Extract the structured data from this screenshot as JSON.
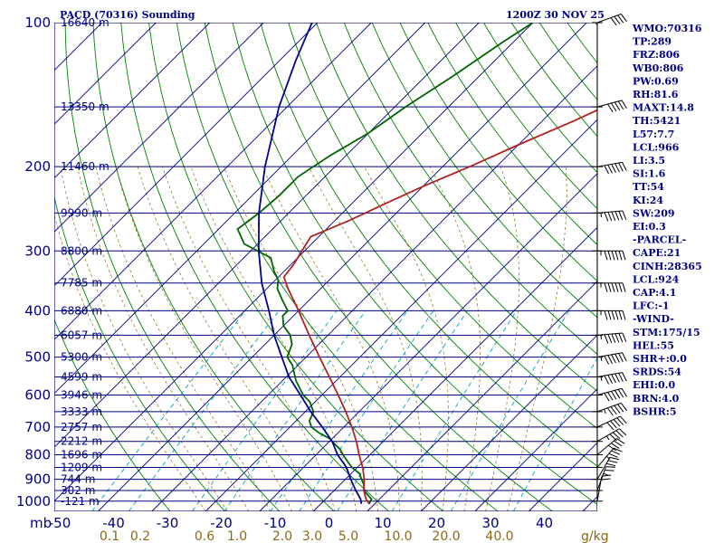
{
  "header": {
    "station": "PACD (70316) Sounding",
    "time": "1200Z 30 NOV 25"
  },
  "chart_data": {
    "type": "skew-t",
    "title": "PACD (70316) Sounding",
    "valid_time": "1200Z 30 NOV 25",
    "pressure_axis_label": "mb",
    "pressure_levels": [
      100,
      200,
      300,
      400,
      500,
      600,
      700,
      800,
      900,
      1000
    ],
    "temperature_ticks": [
      -50,
      -40,
      -30,
      -20,
      -10,
      0,
      10,
      20,
      30,
      40
    ],
    "mixing_ratio_ticks": [
      "0.1",
      "0.2",
      "0.6",
      "1.0",
      "2.0",
      "3.0",
      "5.0",
      "10.0",
      "20.0",
      "40.0"
    ],
    "mixing_ratio_unit": "g/kg",
    "height_labels": [
      {
        "p": 100,
        "h": "16640 m"
      },
      {
        "p": 150,
        "h": "13350 m"
      },
      {
        "p": 200,
        "h": "11460 m"
      },
      {
        "p": 250,
        "h": "9990 m"
      },
      {
        "p": 300,
        "h": "8800 m"
      },
      {
        "p": 350,
        "h": "7785 m"
      },
      {
        "p": 400,
        "h": "6880 m"
      },
      {
        "p": 450,
        "h": "6057 m"
      },
      {
        "p": 500,
        "h": "5300 m"
      },
      {
        "p": 550,
        "h": "4599 m"
      },
      {
        "p": 600,
        "h": "3946 m"
      },
      {
        "p": 650,
        "h": "3333 m"
      },
      {
        "p": 700,
        "h": "2757 m"
      },
      {
        "p": 750,
        "h": "2212 m"
      },
      {
        "p": 800,
        "h": "1696 m"
      },
      {
        "p": 850,
        "h": "1209 m"
      },
      {
        "p": 900,
        "h": "744 m"
      },
      {
        "p": 950,
        "h": "302 m"
      },
      {
        "p": 1000,
        "h": "-121 m"
      }
    ],
    "series": [
      {
        "name": "temperature",
        "color": "#006400",
        "points": [
          [
            1013,
            9
          ],
          [
            990,
            8.5
          ],
          [
            950,
            5.5
          ],
          [
            925,
            4.5
          ],
          [
            900,
            3
          ],
          [
            875,
            1.5
          ],
          [
            850,
            -1
          ],
          [
            825,
            -3
          ],
          [
            800,
            -5
          ],
          [
            780,
            -6.5
          ],
          [
            760,
            -8.5
          ],
          [
            740,
            -10.5
          ],
          [
            720,
            -13.5
          ],
          [
            700,
            -16
          ],
          [
            680,
            -17.5
          ],
          [
            650,
            -18.5
          ],
          [
            620,
            -21
          ],
          [
            600,
            -23.5
          ],
          [
            560,
            -27.5
          ],
          [
            520,
            -31
          ],
          [
            500,
            -33.5
          ],
          [
            470,
            -35
          ],
          [
            450,
            -37
          ],
          [
            430,
            -40
          ],
          [
            410,
            -42
          ],
          [
            400,
            -42
          ],
          [
            380,
            -45
          ],
          [
            360,
            -48
          ],
          [
            345,
            -49.5
          ],
          [
            330,
            -52
          ],
          [
            310,
            -55
          ],
          [
            290,
            -62.5
          ],
          [
            270,
            -66.5
          ],
          [
            250,
            -65.5
          ],
          [
            230,
            -65
          ],
          [
            210,
            -65
          ],
          [
            190,
            -63
          ],
          [
            170,
            -60
          ],
          [
            150,
            -58
          ],
          [
            130,
            -55
          ],
          [
            110,
            -52
          ],
          [
            100,
            -50
          ]
        ]
      },
      {
        "name": "dewpoint",
        "color": "#00008b",
        "points": [
          [
            1013,
            7.5
          ],
          [
            990,
            6.5
          ],
          [
            950,
            4
          ],
          [
            925,
            2.5
          ],
          [
            900,
            1
          ],
          [
            850,
            -2
          ],
          [
            800,
            -6
          ],
          [
            750,
            -9.5
          ],
          [
            700,
            -14
          ],
          [
            650,
            -19
          ],
          [
            600,
            -24
          ],
          [
            550,
            -29.5
          ],
          [
            500,
            -34.5
          ],
          [
            450,
            -40
          ],
          [
            400,
            -45.5
          ],
          [
            350,
            -52
          ],
          [
            300,
            -58.5
          ],
          [
            250,
            -65.5
          ],
          [
            200,
            -73
          ],
          [
            150,
            -81.5
          ],
          [
            120,
            -87
          ],
          [
            100,
            -91
          ]
        ]
      },
      {
        "name": "parcel",
        "color": "#b22222",
        "points": [
          [
            1013,
            9
          ],
          [
            990,
            7.5
          ],
          [
            950,
            5.5
          ],
          [
            900,
            3.5
          ],
          [
            850,
            1
          ],
          [
            800,
            -2
          ],
          [
            750,
            -5
          ],
          [
            700,
            -8.5
          ],
          [
            650,
            -12.5
          ],
          [
            600,
            -17
          ],
          [
            550,
            -22
          ],
          [
            500,
            -27.5
          ],
          [
            450,
            -33.5
          ],
          [
            400,
            -40
          ],
          [
            360,
            -46
          ],
          [
            340,
            -49
          ],
          [
            320,
            -49.5
          ],
          [
            300,
            -50.5
          ],
          [
            280,
            -51.5
          ],
          [
            260,
            -47.5
          ],
          [
            240,
            -44
          ],
          [
            220,
            -40
          ],
          [
            200,
            -35
          ],
          [
            180,
            -30
          ],
          [
            160,
            -24
          ],
          [
            140,
            -18
          ],
          [
            120,
            -11
          ],
          [
            110,
            -7
          ],
          [
            100,
            -3
          ]
        ]
      }
    ],
    "wind_barbs": [
      {
        "p": 1000,
        "dir": 190,
        "spd": 20
      },
      {
        "p": 950,
        "dir": 200,
        "spd": 25
      },
      {
        "p": 900,
        "dir": 210,
        "spd": 30
      },
      {
        "p": 850,
        "dir": 220,
        "spd": 35
      },
      {
        "p": 800,
        "dir": 230,
        "spd": 40
      },
      {
        "p": 750,
        "dir": 240,
        "spd": 45
      },
      {
        "p": 700,
        "dir": 245,
        "spd": 50
      },
      {
        "p": 650,
        "dir": 250,
        "spd": 55
      },
      {
        "p": 600,
        "dir": 255,
        "spd": 60
      },
      {
        "p": 550,
        "dir": 260,
        "spd": 65
      },
      {
        "p": 500,
        "dir": 260,
        "spd": 70
      },
      {
        "p": 450,
        "dir": 265,
        "spd": 70
      },
      {
        "p": 400,
        "dir": 270,
        "spd": 75
      },
      {
        "p": 350,
        "dir": 270,
        "spd": 80
      },
      {
        "p": 300,
        "dir": 270,
        "spd": 75
      },
      {
        "p": 250,
        "dir": 265,
        "spd": 70
      },
      {
        "p": 200,
        "dir": 260,
        "spd": 60
      },
      {
        "p": 150,
        "dir": 255,
        "spd": 50
      },
      {
        "p": 100,
        "dir": 250,
        "spd": 40
      }
    ]
  },
  "indices": [
    "WMO:70316",
    "TP:289",
    "FRZ:806",
    "WB0:806",
    "PW:0.69",
    "RH:81.6",
    "MAXT:14.8",
    "TH:5421",
    "L57:7.7",
    "LCL:966",
    "LI:3.5",
    "SI:1.6",
    "TT:54",
    "KI:24",
    "SW:209",
    "EI:0.3",
    "-PARCEL-",
    "CAPE:21",
    "CINH:28365",
    "LCL:924",
    "CAP:4.1",
    "LFC:-1",
    "-WIND-",
    "STM:175/15",
    "HEL:55",
    "SHR+:0.0",
    "SRDS:54",
    "EHI:0.0",
    "BRN:4.0",
    "BSHR:5"
  ],
  "colors": {
    "isobar": "#000080",
    "isotherm": "#000080",
    "dry_adiabat": "#008000",
    "moist_adiabat": "#20a020",
    "mixing_ratio": "#00a0c0",
    "dashed_adiabat": "#8b6914",
    "text": "#000080",
    "mixing_label": "#8b6914"
  }
}
